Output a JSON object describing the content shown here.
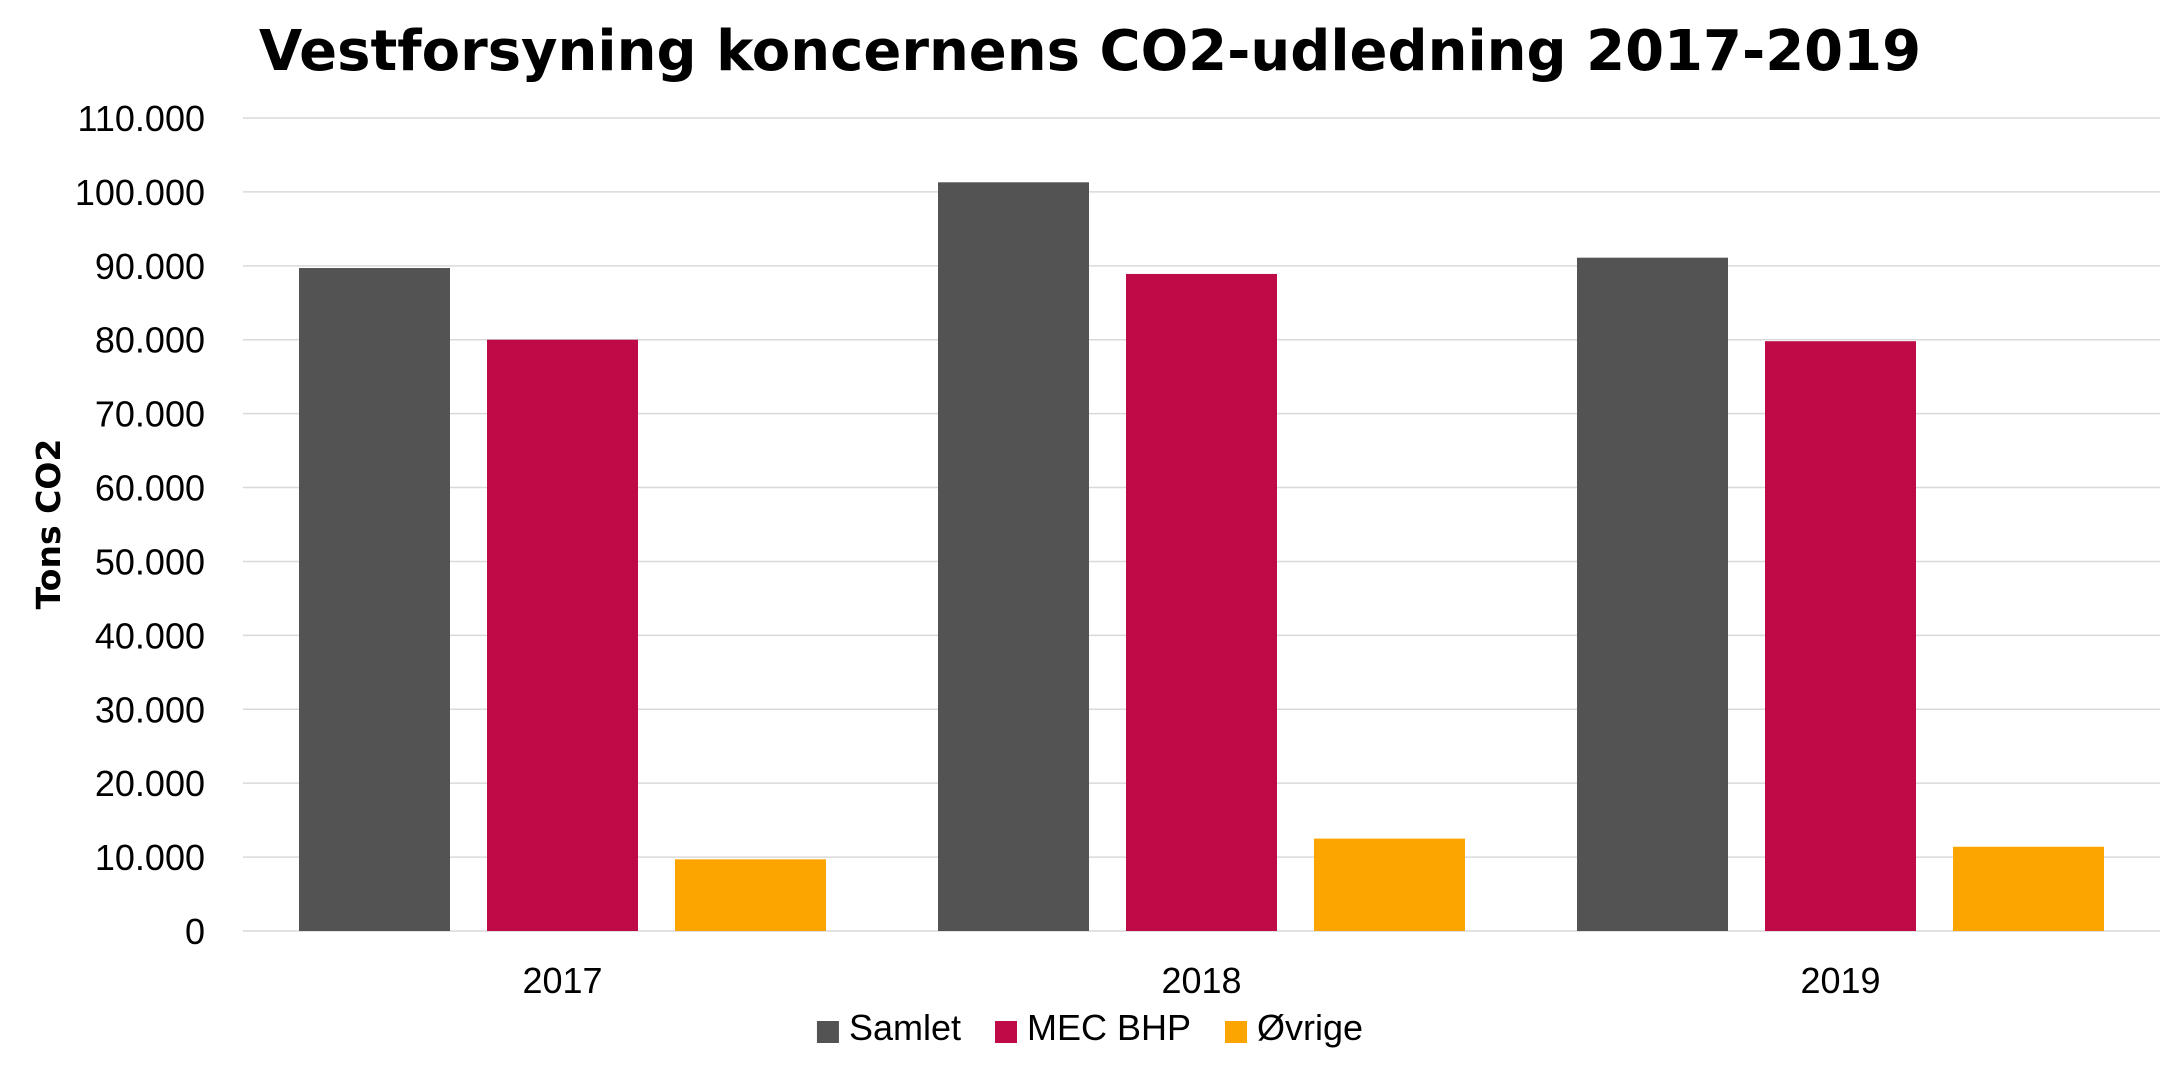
{
  "chart_data": {
    "type": "bar",
    "title": "Vestforsyning koncernens CO2-udledning 2017-2019",
    "xlabel": "",
    "ylabel": "Tons CO2",
    "categories": [
      "2017",
      "2018",
      "2019"
    ],
    "series": [
      {
        "name": "Samlet",
        "color": "#535353",
        "values": [
          89700,
          101300,
          91100
        ]
      },
      {
        "name": "MEC BHP",
        "color": "#be0a46",
        "values": [
          80000,
          88900,
          79800
        ]
      },
      {
        "name": "Øvrige",
        "color": "#fca500",
        "values": [
          9700,
          12500,
          11400
        ]
      }
    ],
    "ylim": [
      0,
      110000
    ],
    "yticks": [
      0,
      10000,
      20000,
      30000,
      40000,
      50000,
      60000,
      70000,
      80000,
      90000,
      100000,
      110000
    ],
    "ytick_labels": [
      "0",
      "10.000",
      "20.000",
      "30.000",
      "40.000",
      "50.000",
      "60.000",
      "70.000",
      "80.000",
      "90.000",
      "100.000",
      "110.000"
    ],
    "grid": true,
    "legend_position": "bottom"
  }
}
